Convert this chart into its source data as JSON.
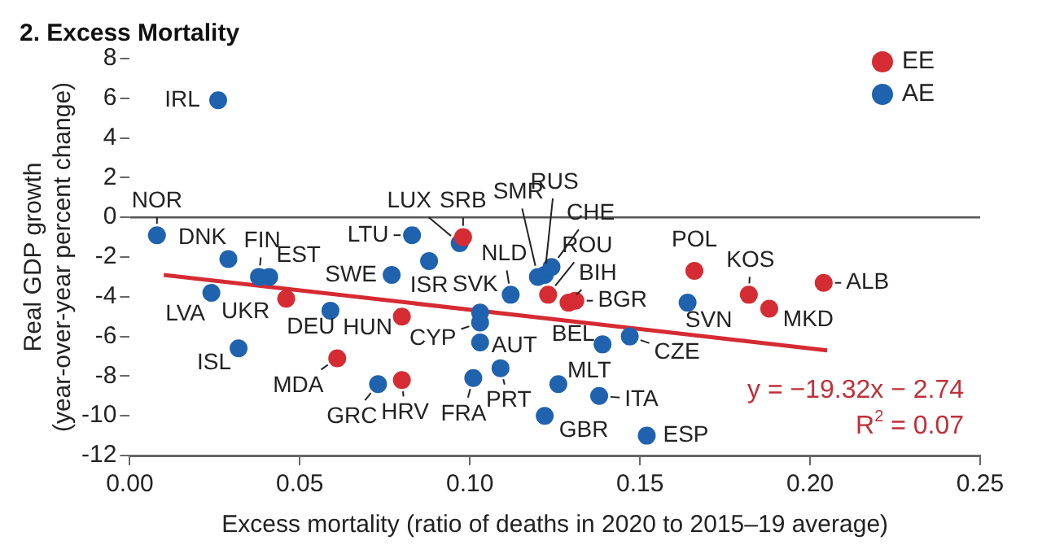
{
  "chart_data": {
    "type": "scatter",
    "title": "2. Excess Mortality",
    "xlabel": "Excess mortality (ratio of deaths in 2020 to 2015–19 average)",
    "ylabel": "Real GDP growth\n(year-over-year percent change)",
    "xlim": [
      0,
      0.25
    ],
    "xticks": [
      {
        "value": 0,
        "label": "0.00"
      },
      {
        "value": 0.05,
        "label": "0.05"
      },
      {
        "value": 0.1,
        "label": "0.10"
      },
      {
        "value": 0.15,
        "label": "0.15"
      },
      {
        "value": 0.2,
        "label": "0.20"
      },
      {
        "value": 0.25,
        "label": "0.25"
      }
    ],
    "ylim": [
      -12,
      8
    ],
    "yticks": [
      -12,
      -10,
      -8,
      -6,
      -4,
      -2,
      0,
      2,
      4,
      6,
      8
    ],
    "grid": false,
    "legend": "top right",
    "marker": "circle",
    "ref_lines": [
      {
        "axis": "y",
        "value": 0,
        "color": "#555555"
      }
    ],
    "series": [
      {
        "name": "EE",
        "color": "#d52b33",
        "x": [
          0.046,
          0.061,
          0.08,
          0.098,
          0.08,
          0.123,
          0.129,
          0.131,
          0.166,
          0.182,
          0.188,
          0.204
        ],
        "values": [
          -4.1,
          -7.1,
          -8.2,
          -1.0,
          -5.0,
          -3.9,
          -4.3,
          -4.2,
          -2.7,
          -3.9,
          -4.6,
          -3.3
        ]
      },
      {
        "name": "AE",
        "color": "#1f62ae",
        "x": [
          0.026,
          0.008,
          0.029,
          0.038,
          0.041,
          0.024,
          0.059,
          0.032,
          0.073,
          0.077,
          0.088,
          0.083,
          0.097,
          0.103,
          0.103,
          0.112,
          0.103,
          0.101,
          0.109,
          0.122,
          0.126,
          0.139,
          0.138,
          0.152,
          0.147,
          0.12,
          0.122,
          0.124,
          0.164
        ],
        "values": [
          5.9,
          -0.9,
          -2.1,
          -3.0,
          -3.0,
          -3.8,
          -4.7,
          -6.6,
          -8.4,
          -2.9,
          -2.2,
          -0.9,
          -1.3,
          -4.8,
          -5.3,
          -3.9,
          -6.3,
          -8.1,
          -7.6,
          -10.0,
          -8.4,
          -6.4,
          -9.0,
          -11.0,
          -6.0,
          -3.0,
          -2.9,
          -2.5,
          -4.3
        ]
      },
      {
        "type": "line",
        "color": "#d52b33",
        "marker": "none",
        "x": [
          0.01,
          0.205
        ],
        "values": [
          -2.9,
          -6.7
        ]
      }
    ],
    "annotations": [
      {
        "text": "UKR",
        "x": 0.046,
        "y": -4.1
      },
      {
        "text": "MDA",
        "x": 0.061,
        "y": -7.1
      },
      {
        "text": "HRV",
        "x": 0.08,
        "y": -8.2
      },
      {
        "text": "SRB",
        "x": 0.098,
        "y": -1.0
      },
      {
        "text": "HUN",
        "x": 0.08,
        "y": -5.0
      },
      {
        "text": "ROU",
        "x": 0.123,
        "y": -3.9
      },
      {
        "text": "BIH",
        "x": 0.129,
        "y": -4.3
      },
      {
        "text": "BGR",
        "x": 0.131,
        "y": -4.2
      },
      {
        "text": "POL",
        "x": 0.166,
        "y": -2.7
      },
      {
        "text": "KOS",
        "x": 0.182,
        "y": -3.9
      },
      {
        "text": "MKD",
        "x": 0.188,
        "y": -4.6
      },
      {
        "text": "ALB",
        "x": 0.204,
        "y": -3.3
      },
      {
        "text": "IRL",
        "x": 0.026,
        "y": 5.9
      },
      {
        "text": "NOR",
        "x": 0.008,
        "y": -0.9
      },
      {
        "text": "DNK",
        "x": 0.029,
        "y": -2.1
      },
      {
        "text": "FIN",
        "x": 0.038,
        "y": -3.0
      },
      {
        "text": "EST",
        "x": 0.041,
        "y": -3.0
      },
      {
        "text": "LVA",
        "x": 0.024,
        "y": -3.8
      },
      {
        "text": "DEU",
        "x": 0.059,
        "y": -4.7
      },
      {
        "text": "ISL",
        "x": 0.032,
        "y": -6.6
      },
      {
        "text": "GRC",
        "x": 0.073,
        "y": -8.4
      },
      {
        "text": "SWE",
        "x": 0.077,
        "y": -2.9
      },
      {
        "text": "ISR",
        "x": 0.088,
        "y": -2.2
      },
      {
        "text": "LTU",
        "x": 0.083,
        "y": -0.9
      },
      {
        "text": "LUX",
        "x": 0.097,
        "y": -1.3
      },
      {
        "text": "SVK",
        "x": 0.103,
        "y": -4.8
      },
      {
        "text": "CYP",
        "x": 0.103,
        "y": -5.3
      },
      {
        "text": "NLD",
        "x": 0.112,
        "y": -3.9
      },
      {
        "text": "AUT",
        "x": 0.103,
        "y": -6.3
      },
      {
        "text": "FRA",
        "x": 0.101,
        "y": -8.1
      },
      {
        "text": "PRT",
        "x": 0.109,
        "y": -7.6
      },
      {
        "text": "GBR",
        "x": 0.122,
        "y": -10.0
      },
      {
        "text": "MLT",
        "x": 0.126,
        "y": -8.4
      },
      {
        "text": "BEL",
        "x": 0.139,
        "y": -6.4
      },
      {
        "text": "ITA",
        "x": 0.138,
        "y": -9.0
      },
      {
        "text": "ESP",
        "x": 0.152,
        "y": -11.0
      },
      {
        "text": "CZE",
        "x": 0.147,
        "y": -6.0
      },
      {
        "text": "SMR",
        "x": 0.12,
        "y": -3.0
      },
      {
        "text": "RUS",
        "x": 0.122,
        "y": -2.9
      },
      {
        "text": "CHE",
        "x": 0.124,
        "y": -2.5
      },
      {
        "text": "SVN",
        "x": 0.164,
        "y": -4.3
      },
      "y = −19.32x − 2.74",
      "R$^{2}$ = 0.07"
    ]
  }
}
